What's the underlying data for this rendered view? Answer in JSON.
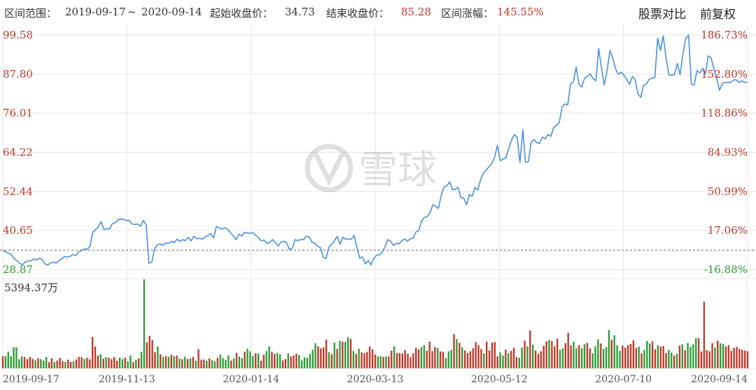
{
  "header": {
    "range_label": "区间范围：",
    "range_start": "2019-09-17",
    "range_sep": "~",
    "range_end": "2020-09-14",
    "start_close_label": "起始收盘价：",
    "start_close_value": "34.73",
    "end_close_label": "结束收盘价：",
    "end_close_value": "85.28",
    "change_label": "区间涨幅：",
    "change_value": "145.55%",
    "compare_label": "股票对比",
    "adjust_label": "前复权"
  },
  "watermark": {
    "text": "雪球"
  },
  "colors": {
    "line": "#4a90e2",
    "up": "#c0392b",
    "down": "#2e9e3a",
    "grid": "#e6e6e6",
    "baseline": "#666666"
  },
  "chart_data": [
    {
      "type": "line",
      "y_ticks_left": [
        "99.58",
        "87.80",
        "76.01",
        "64.22",
        "52.44",
        "40.65",
        "28.87"
      ],
      "y_ticks_right": [
        "186.73%",
        "152.80%",
        "118.86%",
        "84.93%",
        "50.99%",
        "17.06%",
        "-16.88%"
      ],
      "ylim": [
        28.87,
        99.58
      ],
      "baseline": 34.73,
      "x_ticks": [
        "2019-09-17",
        "2019-11-13",
        "2020-01-14",
        "2020-03-13",
        "2020-05-12",
        "2020-07-10",
        "2020-09-14"
      ],
      "series": [
        {
          "values": [
            34.7,
            34.2,
            33.8,
            33.5,
            32.1,
            31.6,
            30.8,
            30.3,
            31.2,
            31.4,
            31.5,
            32.1,
            31.8,
            32.3,
            31.9,
            30.6,
            30.2,
            30.9,
            31.1,
            30.8,
            31.6,
            32.1,
            32.8,
            32.6,
            32.9,
            33.4,
            33.1,
            34.2,
            34.6,
            35.1,
            35.0,
            35.8,
            40.1,
            40.9,
            41.8,
            43.3,
            40.9,
            41.2,
            41.1,
            42.7,
            43.0,
            43.9,
            44.1,
            44.0,
            43.6,
            43.7,
            42.6,
            42.5,
            42.6,
            41.9,
            43.7,
            42.4,
            30.8,
            31.1,
            35.1,
            36.3,
            36.6,
            36.2,
            36.9,
            36.8,
            37.4,
            37.0,
            38.0,
            37.4,
            37.9,
            37.6,
            38.6,
            37.5,
            38.9,
            38.2,
            38.3,
            38.0,
            38.7,
            39.1,
            39.7,
            38.4,
            41.9,
            41.4,
            41.1,
            41.5,
            41.0,
            40.0,
            39.0,
            37.9,
            39.5,
            39.0,
            40.0,
            39.9,
            39.8,
            40.0,
            39.2,
            38.5,
            37.5,
            37.8,
            36.7,
            37.1,
            37.9,
            37.0,
            36.0,
            37.2,
            37.4,
            37.0,
            34.9,
            35.3,
            37.9,
            37.6,
            37.9,
            37.9,
            38.9,
            38.8,
            37.1,
            36.8,
            35.9,
            35.5,
            32.6,
            32.2,
            35.6,
            36.4,
            37.6,
            38.9,
            36.5,
            38.6,
            38.0,
            38.1,
            38.0,
            39.2,
            35.5,
            32.3,
            32.7,
            30.6,
            31.6,
            30.3,
            32.2,
            33.2,
            33.3,
            34.1,
            35.8,
            37.9,
            37.4,
            36.1,
            36.8,
            36.6,
            37.6,
            38.1,
            37.4,
            38.2,
            38.3,
            40.2,
            40.6,
            43.5,
            44.6,
            44.8,
            46.0,
            48.4,
            48.0,
            47.3,
            51.4,
            53.8,
            54.1,
            55.3,
            52.9,
            53.1,
            53.6,
            50.6,
            50.4,
            48.4,
            51.5,
            50.9,
            53.6,
            52.9,
            56.0,
            58.0,
            58.9,
            59.9,
            60.8,
            62.8,
            66.3,
            61.7,
            62.2,
            62.6,
            65.3,
            67.9,
            69.6,
            68.7,
            61.1,
            71.0,
            61.2,
            61.4,
            67.2,
            68.1,
            67.1,
            66.9,
            68.8,
            68.3,
            69.6,
            69.0,
            71.7,
            72.3,
            73.3,
            77.9,
            78.8,
            78.5,
            84.8,
            85.4,
            89.9,
            84.7,
            83.9,
            86.6,
            87.1,
            87.9,
            86.4,
            85.8,
            95.5,
            89.7,
            84.5,
            88.8,
            94.9,
            92.7,
            89.5,
            87.7,
            88.4,
            87.5,
            86.2,
            84.7,
            87.1,
            86.1,
            81.8,
            80.8,
            84.4,
            84.8,
            86.3,
            86.5,
            86.8,
            98.6,
            94.9,
            99.3,
            92.4,
            87.6,
            87.4,
            87.7,
            91.0,
            87.6,
            94.0,
            98.6,
            99.6,
            84.7,
            84.5,
            88.9,
            88.1,
            89.6,
            87.9,
            93.3,
            92.7,
            89.4,
            86.6,
            82.9,
            84.9,
            85.3,
            85.3,
            85.3,
            86.0,
            86.1,
            85.3,
            85.8,
            85.3,
            85.28
          ]
        }
      ]
    },
    {
      "type": "bar",
      "title": "5394.37万",
      "ylim": [
        0,
        5394.37
      ],
      "series": [
        {
          "values": [
            740,
            740,
            1000,
            740,
            1270,
            1270,
            550,
            720,
            680,
            560,
            690,
            570,
            490,
            610,
            560,
            470,
            680,
            370,
            610,
            390,
            470,
            630,
            440,
            380,
            520,
            390,
            420,
            530,
            690,
            670,
            560,
            640,
            540,
            1900,
            1320,
            770,
            850,
            580,
            680,
            640,
            550,
            680,
            460,
            640,
            550,
            650,
            420,
            780,
            380,
            520,
            610,
            1000,
            5394,
            1570,
            1970,
            1720,
            980,
            1320,
            850,
            690,
            740,
            700,
            820,
            740,
            770,
            590,
            550,
            700,
            560,
            600,
            690,
            460,
            1160,
            520,
            530,
            460,
            600,
            490,
            420,
            630,
            830,
            620,
            520,
            780,
            470,
            590,
            930,
            720,
            610,
            1000,
            1190,
            1030,
            750,
            910,
            900,
            460,
            820,
            1050,
            1330,
            1000,
            870,
            930,
            850,
            480,
            560,
            900,
            720,
            780,
            880,
            810,
            480,
            660,
            630,
            870,
            1130,
            1520,
            1340,
            1210,
            1270,
            1730,
            980,
            850,
            1560,
            1180,
            1670,
            1620,
            1600,
            1890,
            1780,
            1050,
            860,
            1190,
            970,
            920,
            1000,
            1320,
            1150,
            840,
            730,
            730,
            690,
            720,
            720,
            1070,
            1330,
            920,
            920,
            900,
            1110,
            880,
            670,
            910,
            1240,
            1150,
            1280,
            1400,
            1060,
            1620,
            1040,
            1300,
            1230,
            1020,
            1000,
            620,
            1030,
            1120,
            2070,
            1770,
            1540,
            1280,
            1080,
            920,
            1040,
            1210,
            1590,
            1400,
            1170,
            900,
            1620,
            1080,
            1560,
            1590,
            720,
            960,
            780,
            1130,
            920,
            1060,
            1250,
            680,
            640,
            1250,
            1680,
            1330,
            2300,
            1440,
            1080,
            870,
            1040,
            1370,
            1630,
            1710,
            1650,
            1320,
            1800,
            1120,
            1210,
            1520,
            2150,
            1380,
            1620,
            1220,
            1400,
            1220,
            1470,
            1540,
            1200,
            900,
            1330,
            1750,
            1510,
            1170,
            1290,
            2330,
            1730,
            2000,
            1400,
            1060,
            1370,
            1260,
            1410,
            1480,
            1690,
            1240,
            1310,
            910,
            1110,
            1660,
            1510,
            1640,
            1150,
            1390,
            1310,
            1350,
            920,
            1110,
            950,
            780,
            880,
            1370,
            1450,
            1100,
            1530,
            1300,
            1450,
            1830,
            1820,
            1020,
            4040,
            1100,
            1040,
            1520,
            1260,
            1670,
            1520,
            1480,
            1320,
            1400,
            1070,
            1240,
            1300,
            1180,
            1120,
            1080,
            1030
          ]
        }
      ]
    }
  ]
}
